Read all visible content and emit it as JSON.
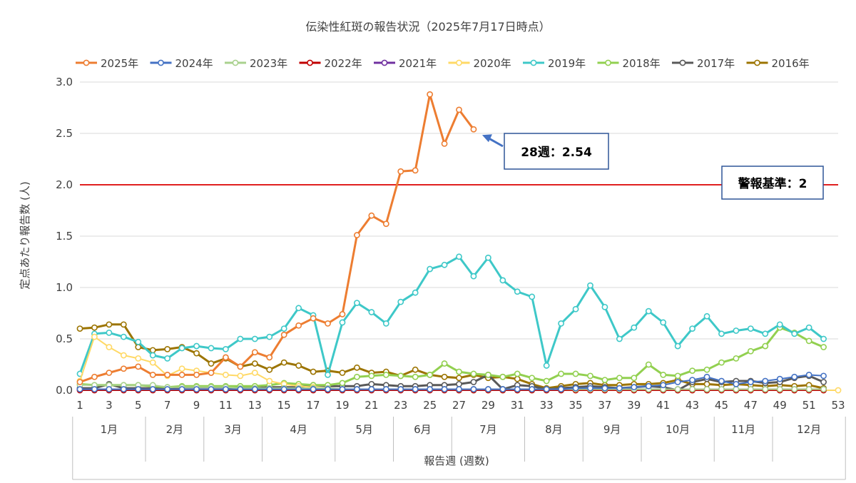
{
  "chart_data": {
    "type": "line",
    "title": "伝染性紅斑の報告状況（2025年7月17日時点）",
    "xlabel": "報告週 (週数)",
    "ylabel": "定点あたり報告数 (人)",
    "ylim": [
      0,
      3.0
    ],
    "xlim": [
      1,
      53
    ],
    "yticks": [
      "0.0",
      "0.5",
      "1.0",
      "1.5",
      "2.0",
      "2.5",
      "3.0"
    ],
    "xticks": [
      "1",
      "3",
      "5",
      "7",
      "9",
      "11",
      "13",
      "15",
      "17",
      "19",
      "21",
      "23",
      "25",
      "27",
      "29",
      "31",
      "33",
      "35",
      "37",
      "39",
      "41",
      "43",
      "45",
      "47",
      "49",
      "51",
      "53"
    ],
    "months": [
      {
        "label": "1月",
        "start": 1,
        "end": 5
      },
      {
        "label": "2月",
        "start": 6,
        "end": 9
      },
      {
        "label": "3月",
        "start": 10,
        "end": 13
      },
      {
        "label": "4月",
        "start": 14,
        "end": 18
      },
      {
        "label": "5月",
        "start": 19,
        "end": 22
      },
      {
        "label": "6月",
        "start": 23,
        "end": 26
      },
      {
        "label": "7月",
        "start": 27,
        "end": 31
      },
      {
        "label": "8月",
        "start": 32,
        "end": 35
      },
      {
        "label": "9月",
        "start": 36,
        "end": 39
      },
      {
        "label": "10月",
        "start": 40,
        "end": 44
      },
      {
        "label": "11月",
        "start": 45,
        "end": 48
      },
      {
        "label": "12月",
        "start": 49,
        "end": 53
      }
    ],
    "grid": true,
    "legend_position": "top",
    "threshold": {
      "value": 2.0,
      "label": "警報基準：2",
      "color": "#e02020"
    },
    "annotation": {
      "text": "28週：2.54",
      "x": 28,
      "y": 2.54
    },
    "series": [
      {
        "name": "2025年",
        "color": "#ed7d31",
        "width": 3,
        "x": [
          1,
          2,
          3,
          4,
          5,
          6,
          7,
          8,
          9,
          10,
          11,
          12,
          13,
          14,
          15,
          16,
          17,
          18,
          19,
          20,
          21,
          22,
          23,
          24,
          25,
          26,
          27,
          28
        ],
        "values": [
          0.08,
          0.13,
          0.17,
          0.21,
          0.23,
          0.15,
          0.15,
          0.15,
          0.15,
          0.17,
          0.32,
          0.23,
          0.37,
          0.32,
          0.54,
          0.63,
          0.7,
          0.65,
          0.74,
          1.51,
          1.7,
          1.62,
          2.13,
          2.14,
          2.88,
          2.4,
          2.73,
          2.54
        ]
      },
      {
        "name": "2024年",
        "color": "#4472c4",
        "width": 2,
        "x": [
          1,
          2,
          3,
          4,
          5,
          6,
          7,
          8,
          9,
          10,
          11,
          12,
          13,
          14,
          15,
          16,
          17,
          18,
          19,
          20,
          21,
          22,
          23,
          24,
          25,
          26,
          27,
          28,
          29,
          30,
          31,
          32,
          33,
          34,
          35,
          36,
          37,
          38,
          39,
          40,
          41,
          42,
          43,
          44,
          45,
          46,
          47,
          48,
          49,
          50,
          51,
          52
        ],
        "values": [
          0.01,
          0.01,
          0.01,
          0.01,
          0.01,
          0.01,
          0.01,
          0.01,
          0.01,
          0.01,
          0.01,
          0.01,
          0.01,
          0.01,
          0.01,
          0.01,
          0.01,
          0.01,
          0.01,
          0.01,
          0.01,
          0.01,
          0.01,
          0.01,
          0.01,
          0.01,
          0.01,
          0.01,
          0.01,
          0.01,
          0.01,
          0.01,
          0.01,
          0.01,
          0.02,
          0.02,
          0.02,
          0.02,
          0.03,
          0.04,
          0.05,
          0.08,
          0.1,
          0.13,
          0.09,
          0.06,
          0.08,
          0.09,
          0.11,
          0.13,
          0.15,
          0.14
        ]
      },
      {
        "name": "2023年",
        "color": "#a9d18e",
        "width": 2,
        "x": [
          1,
          2,
          3,
          4,
          5,
          6,
          7,
          8,
          9,
          10,
          11,
          12,
          13,
          14,
          15,
          16,
          17,
          18,
          19,
          20,
          21,
          22,
          23,
          24,
          25,
          26,
          27,
          28,
          29,
          30,
          31,
          32,
          33,
          34,
          35,
          36,
          37,
          38,
          39,
          40,
          41,
          42,
          43,
          44,
          45,
          46,
          47,
          48,
          49,
          50,
          51,
          52
        ],
        "values": [
          0.05,
          0.05,
          0.05,
          0.05,
          0.05,
          0.05,
          0.03,
          0.03,
          0.03,
          0.03,
          0.03,
          0.02,
          0.02,
          0.02,
          0.02,
          0.02,
          0.02,
          0.02,
          0.01,
          0.01,
          0.01,
          0.01,
          0.01,
          0.01,
          0.01,
          0.01,
          0.01,
          0.01,
          0.01,
          0.01,
          0.01,
          0.01,
          0.01,
          0.01,
          0.01,
          0.01,
          0.01,
          0.01,
          0.01,
          0.01,
          0.01,
          0.01,
          0.01,
          0.01,
          0.01,
          0.01,
          0.01,
          0.01,
          0.01,
          0.01,
          0.01,
          0.01
        ]
      },
      {
        "name": "2022年",
        "color": "#c00000",
        "width": 2,
        "x": [
          1,
          2,
          3,
          4,
          5,
          6,
          7,
          8,
          9,
          10,
          11,
          12,
          13,
          14,
          15,
          16,
          17,
          18,
          19,
          20,
          21,
          22,
          23,
          24,
          25,
          26,
          27,
          28,
          29,
          30,
          31,
          32,
          33,
          34,
          35,
          36,
          37,
          38,
          39,
          40,
          41,
          42,
          43,
          44,
          45,
          46,
          47,
          48,
          49,
          50,
          51,
          52
        ],
        "values": [
          0.0,
          0.0,
          0.0,
          0.0,
          0.0,
          0.0,
          0.0,
          0.0,
          0.0,
          0.0,
          0.0,
          0.0,
          0.0,
          0.0,
          0.0,
          0.0,
          0.0,
          0.0,
          0.0,
          0.0,
          0.0,
          0.0,
          0.0,
          0.0,
          0.0,
          0.0,
          0.0,
          0.0,
          0.0,
          0.0,
          0.0,
          0.0,
          0.0,
          0.0,
          0.0,
          0.0,
          0.0,
          0.0,
          0.0,
          0.0,
          0.0,
          0.0,
          0.0,
          0.0,
          0.0,
          0.0,
          0.0,
          0.0,
          0.0,
          0.0,
          0.0,
          0.0
        ]
      },
      {
        "name": "2021年",
        "color": "#7030a0",
        "width": 2,
        "x": [
          1,
          2,
          3,
          4,
          5,
          6,
          7,
          8,
          9,
          10,
          11,
          12,
          13,
          14,
          15,
          16,
          17,
          18,
          19,
          20,
          21,
          22,
          23,
          24,
          25,
          26,
          27,
          28,
          29,
          30,
          31,
          32,
          33,
          34,
          35,
          36,
          37,
          38,
          39,
          40,
          41,
          42,
          43,
          44,
          45,
          46,
          47,
          48,
          49,
          50,
          51,
          52
        ],
        "values": [
          0.01,
          0.01,
          0.01,
          0.01,
          0.01,
          0.01,
          0.01,
          0.01,
          0.01,
          0.01,
          0.01,
          0.01,
          0.01,
          0.01,
          0.01,
          0.01,
          0.01,
          0.01,
          0.01,
          0.01,
          0.01,
          0.01,
          0.01,
          0.01,
          0.01,
          0.01,
          0.01,
          0.01,
          0.01,
          0.01,
          0.01,
          0.01,
          0.01,
          0.01,
          0.01,
          0.01,
          0.01,
          0.01,
          0.01,
          0.01,
          0.01,
          0.01,
          0.01,
          0.01,
          0.01,
          0.01,
          0.01,
          0.01,
          0.01,
          0.01,
          0.01,
          0.01
        ]
      },
      {
        "name": "2020年",
        "color": "#ffd966",
        "width": 2,
        "x": [
          1,
          2,
          3,
          4,
          5,
          6,
          7,
          8,
          9,
          10,
          11,
          12,
          13,
          14,
          15,
          16,
          17,
          18,
          19,
          20,
          21,
          22,
          23,
          24,
          25,
          26,
          27,
          28,
          29,
          30,
          31,
          32,
          33,
          34,
          35,
          36,
          37,
          38,
          39,
          40,
          41,
          42,
          43,
          44,
          45,
          46,
          47,
          48,
          49,
          50,
          51,
          52,
          53
        ],
        "values": [
          0.09,
          0.52,
          0.42,
          0.34,
          0.31,
          0.27,
          0.14,
          0.21,
          0.19,
          0.17,
          0.15,
          0.14,
          0.17,
          0.09,
          0.06,
          0.04,
          0.03,
          0.02,
          0.01,
          0.01,
          0.01,
          0.01,
          0.01,
          0.01,
          0.01,
          0.01,
          0.0,
          0.0,
          0.0,
          0.0,
          0.0,
          0.0,
          0.0,
          0.0,
          0.0,
          0.0,
          0.0,
          0.0,
          0.0,
          0.0,
          0.0,
          0.0,
          0.0,
          0.0,
          0.0,
          0.0,
          0.0,
          0.0,
          0.0,
          0.0,
          0.0,
          0.0,
          0.0
        ]
      },
      {
        "name": "2019年",
        "color": "#3ec8c8",
        "width": 3,
        "x": [
          1,
          2,
          3,
          4,
          5,
          6,
          7,
          8,
          9,
          10,
          11,
          12,
          13,
          14,
          15,
          16,
          17,
          18,
          19,
          20,
          21,
          22,
          23,
          24,
          25,
          26,
          27,
          28,
          29,
          30,
          31,
          32,
          33,
          34,
          35,
          36,
          37,
          38,
          39,
          40,
          41,
          42,
          43,
          44,
          45,
          46,
          47,
          48,
          49,
          50,
          51,
          52
        ],
        "values": [
          0.16,
          0.55,
          0.56,
          0.52,
          0.47,
          0.34,
          0.31,
          0.41,
          0.43,
          0.41,
          0.4,
          0.5,
          0.5,
          0.52,
          0.6,
          0.8,
          0.73,
          0.15,
          0.66,
          0.85,
          0.76,
          0.65,
          0.86,
          0.95,
          1.18,
          1.22,
          1.3,
          1.11,
          1.29,
          1.07,
          0.96,
          0.91,
          0.24,
          0.65,
          0.79,
          1.02,
          0.81,
          0.5,
          0.61,
          0.77,
          0.66,
          0.43,
          0.6,
          0.72,
          0.55,
          0.58,
          0.6,
          0.55,
          0.64,
          0.55,
          0.61,
          0.5
        ]
      },
      {
        "name": "2018年",
        "color": "#92d050",
        "width": 3,
        "x": [
          1,
          2,
          3,
          4,
          5,
          6,
          7,
          8,
          9,
          10,
          11,
          12,
          13,
          14,
          15,
          16,
          17,
          18,
          19,
          20,
          21,
          22,
          23,
          24,
          25,
          26,
          27,
          28,
          29,
          30,
          31,
          32,
          33,
          34,
          35,
          36,
          37,
          38,
          39,
          40,
          41,
          42,
          43,
          44,
          45,
          46,
          47,
          48,
          49,
          50,
          51,
          52
        ],
        "values": [
          0.06,
          0.05,
          0.05,
          0.05,
          0.05,
          0.04,
          0.03,
          0.04,
          0.04,
          0.04,
          0.04,
          0.04,
          0.04,
          0.05,
          0.07,
          0.06,
          0.05,
          0.05,
          0.07,
          0.13,
          0.14,
          0.15,
          0.14,
          0.13,
          0.15,
          0.26,
          0.18,
          0.16,
          0.15,
          0.13,
          0.16,
          0.12,
          0.09,
          0.16,
          0.16,
          0.14,
          0.1,
          0.12,
          0.12,
          0.25,
          0.15,
          0.14,
          0.19,
          0.2,
          0.27,
          0.31,
          0.38,
          0.43,
          0.61,
          0.56,
          0.48,
          0.42
        ]
      },
      {
        "name": "2017年",
        "color": "#595959",
        "width": 3,
        "x": [
          1,
          2,
          3,
          4,
          5,
          6,
          7,
          8,
          9,
          10,
          11,
          12,
          13,
          14,
          15,
          16,
          17,
          18,
          19,
          20,
          21,
          22,
          23,
          24,
          25,
          26,
          27,
          28,
          29,
          30,
          31,
          32,
          33,
          34,
          35,
          36,
          37,
          38,
          39,
          40,
          41,
          42,
          43,
          44,
          45,
          46,
          47,
          48,
          49,
          50,
          51,
          52
        ],
        "values": [
          0.02,
          0.02,
          0.06,
          0.02,
          0.02,
          0.02,
          0.02,
          0.03,
          0.03,
          0.03,
          0.03,
          0.02,
          0.02,
          0.03,
          0.03,
          0.03,
          0.05,
          0.04,
          0.04,
          0.04,
          0.06,
          0.05,
          0.04,
          0.04,
          0.05,
          0.05,
          0.06,
          0.08,
          0.15,
          0.01,
          0.05,
          0.04,
          0.01,
          0.02,
          0.03,
          0.04,
          0.03,
          0.02,
          0.03,
          0.04,
          0.03,
          0.0,
          0.08,
          0.11,
          0.08,
          0.09,
          0.09,
          0.07,
          0.08,
          0.12,
          0.14,
          0.08
        ]
      },
      {
        "name": "2016年",
        "color": "#9c7400",
        "width": 3,
        "x": [
          1,
          2,
          3,
          4,
          5,
          6,
          7,
          8,
          9,
          10,
          11,
          12,
          13,
          14,
          15,
          16,
          17,
          18,
          19,
          20,
          21,
          22,
          23,
          24,
          25,
          26,
          27,
          28,
          29,
          30,
          31,
          32,
          33,
          34,
          35,
          36,
          37,
          38,
          39,
          40,
          41,
          42,
          43,
          44,
          45,
          46,
          47,
          48,
          49,
          50,
          51,
          52
        ],
        "values": [
          0.6,
          0.61,
          0.64,
          0.64,
          0.42,
          0.39,
          0.4,
          0.42,
          0.36,
          0.26,
          0.31,
          0.23,
          0.26,
          0.2,
          0.27,
          0.24,
          0.18,
          0.19,
          0.17,
          0.22,
          0.17,
          0.18,
          0.14,
          0.2,
          0.15,
          0.13,
          0.12,
          0.15,
          0.12,
          0.13,
          0.11,
          0.06,
          0.02,
          0.04,
          0.06,
          0.07,
          0.05,
          0.05,
          0.06,
          0.06,
          0.07,
          0.1,
          0.06,
          0.06,
          0.05,
          0.06,
          0.05,
          0.04,
          0.05,
          0.04,
          0.05,
          0.02
        ]
      }
    ]
  }
}
